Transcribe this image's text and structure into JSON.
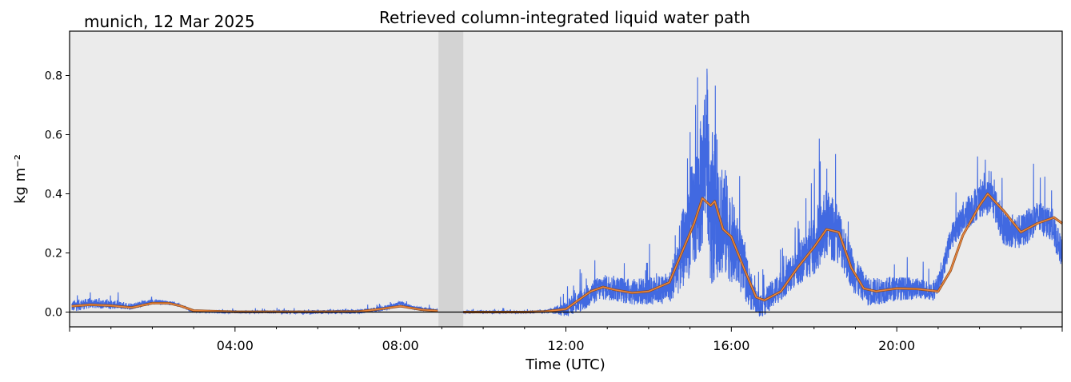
{
  "chart_data": {
    "type": "line",
    "title": "Retrieved column-integrated liquid water path",
    "location_date": "munich, 12 Mar 2025",
    "xlabel": "Time (UTC)",
    "ylabel": "kg m⁻²",
    "x_unit": "hours UTC",
    "xlim": [
      0,
      24
    ],
    "ylim": [
      -0.05,
      0.95
    ],
    "x_ticks": [
      "04:00",
      "08:00",
      "12:00",
      "16:00",
      "20:00"
    ],
    "x_tick_values": [
      4,
      8,
      12,
      16,
      20
    ],
    "y_ticks": [
      "0.0",
      "0.2",
      "0.4",
      "0.6",
      "0.8"
    ],
    "y_tick_values": [
      0.0,
      0.2,
      0.4,
      0.6,
      0.8
    ],
    "grid": false,
    "background_color": "#ebebeb",
    "gap_band": {
      "x_start": 8.92,
      "x_end": 9.52,
      "color": "#d3d3d3"
    },
    "zero_line": {
      "y": 0.0,
      "color": "#000000"
    },
    "series": [
      {
        "kind": "raw",
        "color": "#4169e1",
        "noise_amplitude": [
          [
            0,
            0.02
          ],
          [
            3,
            0.003
          ],
          [
            7.5,
            0.008
          ],
          [
            8.9,
            0.005
          ],
          [
            11.5,
            0.004
          ],
          [
            12.4,
            0.04
          ],
          [
            14.5,
            0.05
          ],
          [
            15,
            0.18
          ],
          [
            15.5,
            0.28
          ],
          [
            16,
            0.15
          ],
          [
            16.6,
            0.04
          ],
          [
            17.5,
            0.06
          ],
          [
            18.3,
            0.12
          ],
          [
            19.2,
            0.05
          ],
          [
            21,
            0.03
          ],
          [
            21.8,
            0.06
          ],
          [
            23,
            0.06
          ],
          [
            24,
            0.05
          ]
        ],
        "segments": [
          {
            "x": [
              0.05,
              0.5,
              1.0,
              1.5,
              2.0,
              2.5,
              2.7,
              3.0,
              4.0,
              5.0,
              6.0,
              7.0,
              7.5,
              7.8,
              8.0,
              8.3,
              8.9
            ],
            "y": [
              0.02,
              0.03,
              0.025,
              0.02,
              0.035,
              0.03,
              0.02,
              0.002,
              0.0,
              0.0,
              0.0,
              0.002,
              0.01,
              0.02,
              0.03,
              0.015,
              0.005
            ]
          },
          {
            "x": [
              9.52,
              10.0,
              11.0,
              11.5,
              12.0,
              12.5,
              12.8,
              13.0,
              13.5,
              14.0,
              14.5,
              14.8,
              15.0,
              15.2,
              15.3,
              15.4,
              15.5,
              15.7,
              16.0,
              16.2,
              16.5,
              16.7,
              17.0,
              17.5,
              18.0,
              18.3,
              18.6,
              19.0,
              19.3,
              19.5,
              20.0,
              20.5,
              20.9,
              21.1,
              21.3,
              21.6,
              22.0,
              22.3,
              22.6,
              23.0,
              23.4,
              23.7,
              24.0
            ],
            "y": [
              0.0,
              0.0,
              0.0,
              0.002,
              0.01,
              0.05,
              0.08,
              0.085,
              0.07,
              0.07,
              0.08,
              0.2,
              0.3,
              0.38,
              0.45,
              0.6,
              0.37,
              0.35,
              0.25,
              0.18,
              0.06,
              0.02,
              0.06,
              0.14,
              0.22,
              0.3,
              0.26,
              0.12,
              0.07,
              0.07,
              0.08,
              0.08,
              0.07,
              0.13,
              0.25,
              0.32,
              0.38,
              0.39,
              0.28,
              0.27,
              0.32,
              0.3,
              0.2
            ]
          }
        ]
      },
      {
        "kind": "smoothed",
        "color": "#e8853d",
        "segments": [
          {
            "x": [
              0.05,
              0.5,
              1.0,
              1.5,
              2.0,
              2.4,
              2.7,
              3.0,
              4.0,
              5.0,
              6.0,
              7.0,
              7.5,
              8.0,
              8.5,
              8.9
            ],
            "y": [
              0.02,
              0.025,
              0.022,
              0.015,
              0.03,
              0.03,
              0.02,
              0.005,
              0.001,
              0.001,
              0.001,
              0.002,
              0.01,
              0.02,
              0.008,
              0.004
            ]
          },
          {
            "x": [
              9.52,
              10.0,
              11.0,
              11.5,
              12.0,
              12.3,
              12.6,
              12.9,
              13.2,
              13.6,
              14.0,
              14.5,
              14.8,
              15.1,
              15.3,
              15.5,
              15.6,
              15.8,
              16.0,
              16.3,
              16.6,
              16.8,
              17.2,
              17.6,
              18.0,
              18.3,
              18.6,
              18.9,
              19.2,
              19.5,
              20.0,
              20.5,
              21.0,
              21.3,
              21.6,
              22.0,
              22.2,
              22.6,
              23.0,
              23.4,
              23.8,
              24.0
            ],
            "y": [
              0.0,
              0.0,
              0.0,
              0.002,
              0.01,
              0.04,
              0.07,
              0.085,
              0.075,
              0.065,
              0.07,
              0.1,
              0.2,
              0.3,
              0.385,
              0.36,
              0.375,
              0.28,
              0.255,
              0.15,
              0.05,
              0.04,
              0.07,
              0.15,
              0.22,
              0.28,
              0.27,
              0.15,
              0.08,
              0.07,
              0.08,
              0.078,
              0.07,
              0.14,
              0.26,
              0.36,
              0.4,
              0.34,
              0.27,
              0.3,
              0.32,
              0.3
            ]
          }
        ]
      }
    ]
  }
}
